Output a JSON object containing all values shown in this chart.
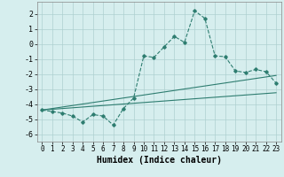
{
  "x_humidex": [
    0,
    1,
    2,
    3,
    4,
    5,
    6,
    7,
    8,
    9,
    10,
    11,
    12,
    13,
    14,
    15,
    16,
    17,
    18,
    19,
    20,
    21,
    22,
    23
  ],
  "y_main": [
    -4.4,
    -4.5,
    -4.6,
    -4.8,
    -5.2,
    -4.7,
    -4.8,
    -5.4,
    -4.3,
    -3.6,
    -0.8,
    -0.9,
    -0.2,
    0.5,
    0.1,
    2.2,
    1.7,
    -0.8,
    -0.85,
    -1.8,
    -1.9,
    -1.7,
    -1.85,
    -2.6
  ],
  "y_line1": [
    -4.4,
    -4.3,
    -4.2,
    -4.1,
    -4.0,
    -3.9,
    -3.8,
    -3.7,
    -3.6,
    -3.5,
    -3.4,
    -3.3,
    -3.2,
    -3.1,
    -3.0,
    -2.9,
    -2.8,
    -2.7,
    -2.6,
    -2.5,
    -2.4,
    -2.3,
    -2.2,
    -2.1
  ],
  "y_line2": [
    -4.4,
    -4.35,
    -4.3,
    -4.25,
    -4.2,
    -4.15,
    -4.1,
    -4.05,
    -4.0,
    -3.95,
    -3.9,
    -3.85,
    -3.8,
    -3.75,
    -3.7,
    -3.65,
    -3.6,
    -3.55,
    -3.5,
    -3.45,
    -3.4,
    -3.35,
    -3.3,
    -3.25
  ],
  "main_color": "#2e7d70",
  "line_color": "#2e7d70",
  "bg_color": "#d6eeee",
  "grid_color": "#aed0d0",
  "xlabel": "Humidex (Indice chaleur)",
  "xlim": [
    -0.5,
    23.5
  ],
  "ylim": [
    -6.5,
    2.8
  ],
  "yticks": [
    -6,
    -5,
    -4,
    -3,
    -2,
    -1,
    0,
    1,
    2
  ],
  "xticks": [
    0,
    1,
    2,
    3,
    4,
    5,
    6,
    7,
    8,
    9,
    10,
    11,
    12,
    13,
    14,
    15,
    16,
    17,
    18,
    19,
    20,
    21,
    22,
    23
  ]
}
